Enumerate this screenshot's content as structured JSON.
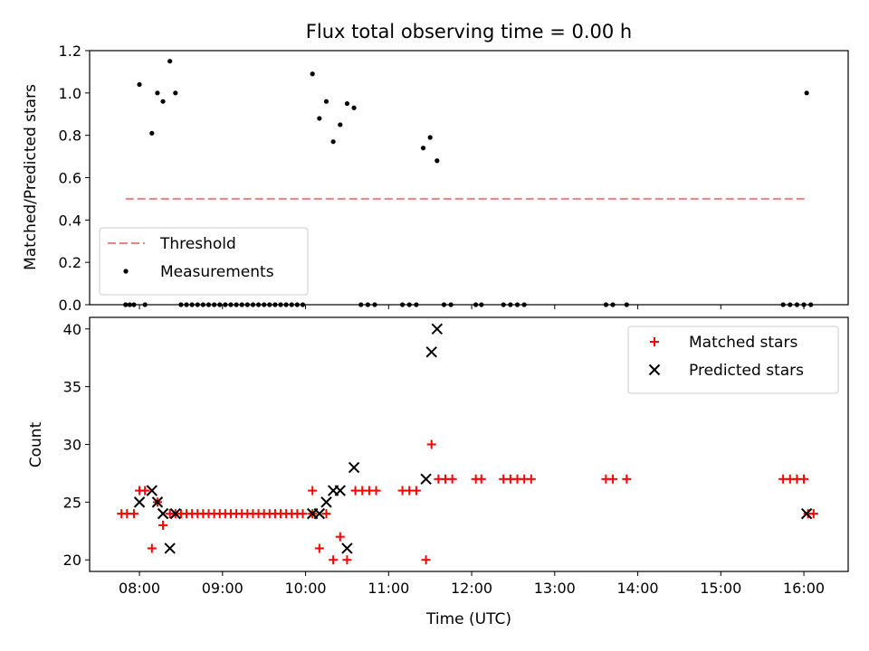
{
  "chart_data": [
    {
      "type": "scatter",
      "title": "Flux total observing time = 0.00 h",
      "ylabel": "Matched/Predicted stars",
      "xlabel": "",
      "xlim": [
        "07:24",
        "16:32"
      ],
      "ylim": [
        0,
        1.2
      ],
      "yticks": [
        "0.0",
        "0.2",
        "0.4",
        "0.6",
        "0.8",
        "1.0",
        "1.2"
      ],
      "xticks": [
        "08:00",
        "09:00",
        "10:00",
        "11:00",
        "12:00",
        "13:00",
        "14:00",
        "15:00",
        "16:00"
      ],
      "legend_position": "lower-left",
      "threshold": {
        "name": "Threshold",
        "y": 0.5,
        "x_range": [
          "07:50",
          "16:03"
        ],
        "color": "#f08080",
        "style": "dashed"
      },
      "series": [
        {
          "name": "Measurements",
          "color": "#000000",
          "marker": "dot",
          "points": [
            [
              "07:50",
              0
            ],
            [
              "07:53",
              0
            ],
            [
              "07:56",
              0
            ],
            [
              "08:00",
              1.04
            ],
            [
              "08:04",
              0
            ],
            [
              "08:09",
              0.81
            ],
            [
              "08:13",
              1.0
            ],
            [
              "08:17",
              0.96
            ],
            [
              "08:22",
              1.15
            ],
            [
              "08:26",
              1.0
            ],
            [
              "08:30",
              0
            ],
            [
              "08:34",
              0
            ],
            [
              "08:38",
              0
            ],
            [
              "08:42",
              0
            ],
            [
              "08:46",
              0
            ],
            [
              "08:50",
              0
            ],
            [
              "08:54",
              0
            ],
            [
              "08:58",
              0
            ],
            [
              "09:02",
              0
            ],
            [
              "09:06",
              0
            ],
            [
              "09:10",
              0
            ],
            [
              "09:14",
              0
            ],
            [
              "09:18",
              0
            ],
            [
              "09:22",
              0
            ],
            [
              "09:26",
              0
            ],
            [
              "09:30",
              0
            ],
            [
              "09:34",
              0
            ],
            [
              "09:38",
              0
            ],
            [
              "09:42",
              0
            ],
            [
              "09:46",
              0
            ],
            [
              "09:50",
              0
            ],
            [
              "09:54",
              0
            ],
            [
              "09:58",
              0
            ],
            [
              "10:05",
              1.09
            ],
            [
              "10:10",
              0.88
            ],
            [
              "10:15",
              0.96
            ],
            [
              "10:20",
              0.77
            ],
            [
              "10:25",
              0.85
            ],
            [
              "10:30",
              0.95
            ],
            [
              "10:35",
              0.93
            ],
            [
              "10:40",
              0
            ],
            [
              "10:45",
              0
            ],
            [
              "10:50",
              0
            ],
            [
              "11:10",
              0
            ],
            [
              "11:15",
              0
            ],
            [
              "11:20",
              0
            ],
            [
              "11:25",
              0.74
            ],
            [
              "11:30",
              0.79
            ],
            [
              "11:35",
              0.68
            ],
            [
              "11:40",
              0
            ],
            [
              "11:45",
              0
            ],
            [
              "12:03",
              0
            ],
            [
              "12:07",
              0
            ],
            [
              "12:23",
              0
            ],
            [
              "12:28",
              0
            ],
            [
              "12:33",
              0
            ],
            [
              "12:38",
              0
            ],
            [
              "13:37",
              0
            ],
            [
              "13:42",
              0
            ],
            [
              "13:52",
              0
            ],
            [
              "15:45",
              0
            ],
            [
              "15:50",
              0
            ],
            [
              "15:55",
              0
            ],
            [
              "16:00",
              0
            ],
            [
              "16:05",
              0
            ],
            [
              "16:02",
              1.0
            ]
          ]
        }
      ]
    },
    {
      "type": "scatter",
      "title": "",
      "ylabel": "Count",
      "xlabel": "Time (UTC)",
      "xlim": [
        "07:24",
        "16:32"
      ],
      "ylim": [
        19,
        41
      ],
      "yticks": [
        "20",
        "25",
        "30",
        "35",
        "40"
      ],
      "xticks": [
        "08:00",
        "09:00",
        "10:00",
        "11:00",
        "12:00",
        "13:00",
        "14:00",
        "15:00",
        "16:00"
      ],
      "legend_position": "top-right",
      "series": [
        {
          "name": "Matched stars",
          "color": "#ff0000",
          "marker": "plus",
          "points": [
            [
              "07:47",
              24
            ],
            [
              "07:51",
              24
            ],
            [
              "07:56",
              24
            ],
            [
              "08:00",
              26
            ],
            [
              "08:04",
              26
            ],
            [
              "08:09",
              21
            ],
            [
              "08:13",
              25
            ],
            [
              "08:17",
              23
            ],
            [
              "08:22",
              24
            ],
            [
              "08:26",
              24
            ],
            [
              "08:30",
              24
            ],
            [
              "08:34",
              24
            ],
            [
              "08:38",
              24
            ],
            [
              "08:42",
              24
            ],
            [
              "08:46",
              24
            ],
            [
              "08:50",
              24
            ],
            [
              "08:54",
              24
            ],
            [
              "08:58",
              24
            ],
            [
              "09:02",
              24
            ],
            [
              "09:06",
              24
            ],
            [
              "09:10",
              24
            ],
            [
              "09:14",
              24
            ],
            [
              "09:18",
              24
            ],
            [
              "09:22",
              24
            ],
            [
              "09:26",
              24
            ],
            [
              "09:30",
              24
            ],
            [
              "09:34",
              24
            ],
            [
              "09:38",
              24
            ],
            [
              "09:42",
              24
            ],
            [
              "09:46",
              24
            ],
            [
              "09:50",
              24
            ],
            [
              "09:54",
              24
            ],
            [
              "09:58",
              24
            ],
            [
              "10:05",
              26
            ],
            [
              "10:05",
              24
            ],
            [
              "10:10",
              21
            ],
            [
              "10:15",
              24
            ],
            [
              "10:20",
              20
            ],
            [
              "10:25",
              22
            ],
            [
              "10:30",
              20
            ],
            [
              "10:36",
              26
            ],
            [
              "10:41",
              26
            ],
            [
              "10:46",
              26
            ],
            [
              "10:51",
              26
            ],
            [
              "11:10",
              26
            ],
            [
              "11:15",
              26
            ],
            [
              "11:20",
              26
            ],
            [
              "11:27",
              20
            ],
            [
              "11:31",
              30
            ],
            [
              "11:36",
              27
            ],
            [
              "11:41",
              27
            ],
            [
              "11:46",
              27
            ],
            [
              "12:03",
              27
            ],
            [
              "12:07",
              27
            ],
            [
              "12:23",
              27
            ],
            [
              "12:28",
              27
            ],
            [
              "12:33",
              27
            ],
            [
              "12:38",
              27
            ],
            [
              "12:43",
              27
            ],
            [
              "13:37",
              27
            ],
            [
              "13:42",
              27
            ],
            [
              "13:52",
              27
            ],
            [
              "15:45",
              27
            ],
            [
              "15:50",
              27
            ],
            [
              "15:55",
              27
            ],
            [
              "16:00",
              27
            ],
            [
              "16:03",
              24
            ],
            [
              "16:07",
              24
            ]
          ]
        },
        {
          "name": "Predicted stars",
          "color": "#000000",
          "marker": "x",
          "points": [
            [
              "08:00",
              25
            ],
            [
              "08:09",
              26
            ],
            [
              "08:13",
              25
            ],
            [
              "08:17",
              24
            ],
            [
              "08:22",
              21
            ],
            [
              "08:26",
              24
            ],
            [
              "10:05",
              24
            ],
            [
              "10:10",
              24
            ],
            [
              "10:15",
              25
            ],
            [
              "10:20",
              26
            ],
            [
              "10:25",
              26
            ],
            [
              "10:30",
              21
            ],
            [
              "10:35",
              28
            ],
            [
              "11:27",
              27
            ],
            [
              "11:31",
              38
            ],
            [
              "11:35",
              40
            ],
            [
              "16:02",
              24
            ]
          ]
        }
      ]
    }
  ]
}
